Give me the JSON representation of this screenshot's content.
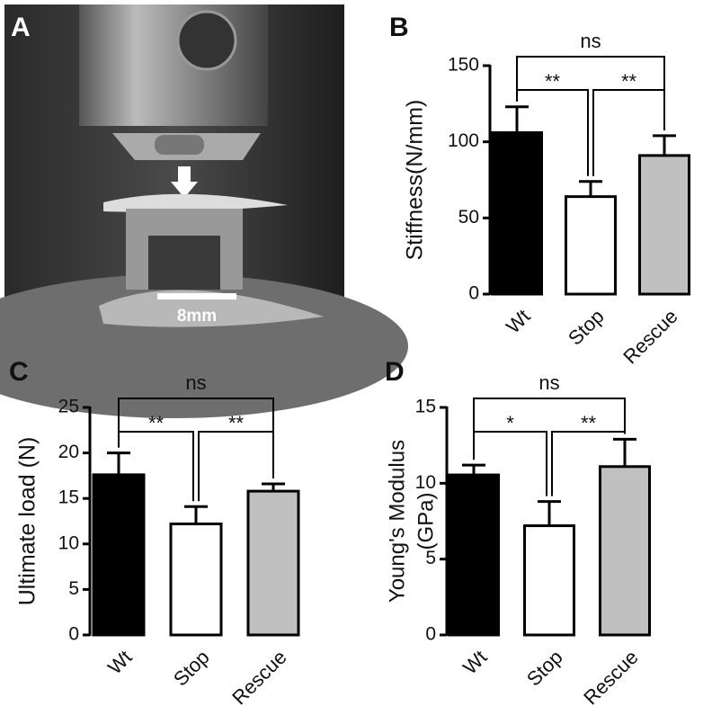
{
  "photo_panel": {
    "panel_label": "A",
    "scale_bar": "8mm"
  },
  "chart_data": [
    {
      "type": "bar",
      "panel_label": "B",
      "ylabel": "Stiffness(N/mm)",
      "categories": [
        "Wt",
        "Stop",
        "Rescue"
      ],
      "values": [
        106,
        64,
        91
      ],
      "errors": [
        17,
        10,
        13
      ],
      "colors": [
        "#000000",
        "#ffffff",
        "#c0c0c0"
      ],
      "ylim": [
        0,
        150
      ],
      "yticks": [
        0,
        50,
        100,
        150
      ],
      "comparisons": [
        {
          "pair": [
            0,
            2
          ],
          "label": "ns"
        },
        {
          "pair": [
            0,
            1
          ],
          "label": "**"
        },
        {
          "pair": [
            1,
            2
          ],
          "label": "**"
        }
      ]
    },
    {
      "type": "bar",
      "panel_label": "C",
      "ylabel": "Ultimate load (N)",
      "categories": [
        "Wt",
        "Stop",
        "Rescue"
      ],
      "values": [
        17.6,
        12.2,
        15.8
      ],
      "errors": [
        2.4,
        1.9,
        0.8
      ],
      "colors": [
        "#000000",
        "#ffffff",
        "#c0c0c0"
      ],
      "ylim": [
        0,
        25
      ],
      "yticks": [
        0,
        5,
        10,
        15,
        20,
        25
      ],
      "comparisons": [
        {
          "pair": [
            0,
            2
          ],
          "label": "ns"
        },
        {
          "pair": [
            0,
            1
          ],
          "label": "**"
        },
        {
          "pair": [
            1,
            2
          ],
          "label": "**"
        }
      ]
    },
    {
      "type": "bar",
      "panel_label": "D",
      "ylabel": [
        "Young's Modulus",
        "(GPa)"
      ],
      "categories": [
        "Wt",
        "Stop",
        "Rescue"
      ],
      "values": [
        10.55,
        7.2,
        11.1
      ],
      "errors": [
        0.65,
        1.6,
        1.8
      ],
      "colors": [
        "#000000",
        "#ffffff",
        "#c0c0c0"
      ],
      "ylim": [
        0,
        15
      ],
      "yticks": [
        0,
        5,
        10,
        15
      ],
      "comparisons": [
        {
          "pair": [
            0,
            2
          ],
          "label": "ns"
        },
        {
          "pair": [
            0,
            1
          ],
          "label": "*"
        },
        {
          "pair": [
            1,
            2
          ],
          "label": "**"
        }
      ]
    }
  ]
}
